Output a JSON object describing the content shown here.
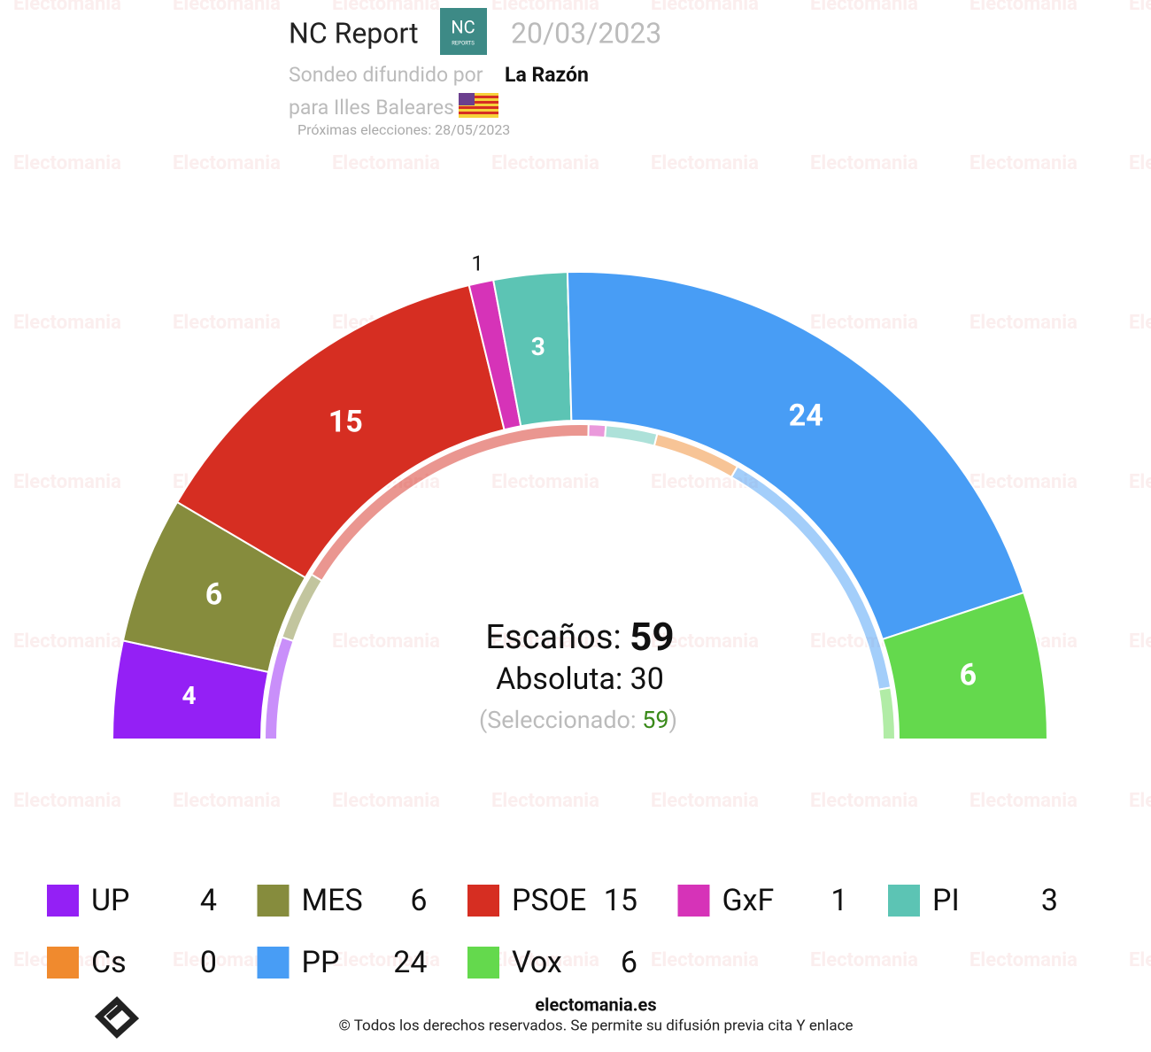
{
  "chart_data": {
    "type": "parliament",
    "pollster": "NC Report",
    "logo_text": [
      "NC",
      "REPORTS"
    ],
    "date": "20/03/2023",
    "published_by_label": "Sondeo difundido por",
    "published_by": "La Razón",
    "region": "para Illes Baleares",
    "next_election": "Próximas elecciones: 28/05/2023",
    "categories": [
      "UP",
      "MES",
      "PSOE",
      "GxF",
      "PI",
      "Cs",
      "PP",
      "Vox"
    ],
    "colors": [
      "#9420f5",
      "#868c3d",
      "#d62e22",
      "#d633b8",
      "#5cc4b4",
      "#f08a2e",
      "#489df5",
      "#64d94d"
    ],
    "values": [
      4,
      6,
      15,
      1,
      3,
      0,
      24,
      6
    ],
    "previous_values": [
      6,
      4,
      19,
      1,
      3,
      5,
      16,
      3
    ],
    "seats_label": "Escaños:",
    "total": 59,
    "majority_label": "Absoluta:",
    "majority": 30,
    "selected_label": "(Seleccionado:",
    "selected": 59,
    "selected_close": ")",
    "watermark": "Electomania",
    "footer_site": "electomania.es",
    "footer_rights": "© Todos los derechos reservados. Se permite su difusión previa cita Y enlace"
  }
}
